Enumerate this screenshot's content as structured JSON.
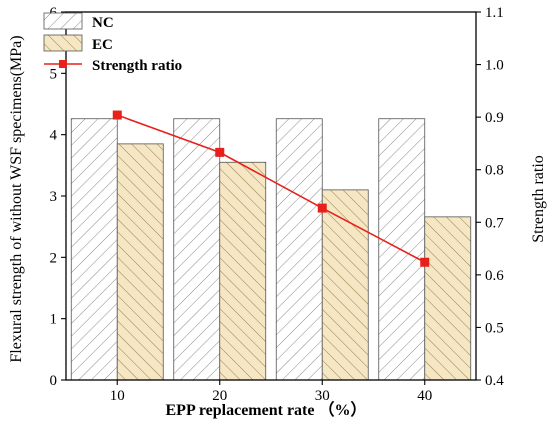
{
  "chart_data": {
    "type": "bar",
    "categories": [
      "10",
      "20",
      "30",
      "40"
    ],
    "xlabel": "EPP replacement rate （%）",
    "ylabel": "Flexural strength of without WSF specimens(MPa)",
    "y2label": "Strength ratio",
    "ylim": [
      0,
      6
    ],
    "y2lim": [
      0.4,
      1.1
    ],
    "yticks": [
      "0",
      "1",
      "2",
      "3",
      "4",
      "5",
      "6"
    ],
    "y2ticks": [
      "0.4",
      "0.5",
      "0.6",
      "0.7",
      "0.8",
      "0.9",
      "1.0",
      "1.1"
    ],
    "grid": false,
    "legend_position": "top-left",
    "series": [
      {
        "name": "NC",
        "kind": "bar",
        "axis": "left",
        "values": [
          4.26,
          4.26,
          4.26,
          4.26
        ],
        "fill": "#ffffff",
        "hatch": "#8a8a8a"
      },
      {
        "name": "EC",
        "kind": "bar",
        "axis": "left",
        "values": [
          3.85,
          3.55,
          3.1,
          2.66
        ],
        "fill": "#f5e6c4",
        "hatch": "#9a8050"
      },
      {
        "name": "Strength ratio",
        "kind": "line",
        "axis": "right",
        "values": [
          0.904,
          0.833,
          0.727,
          0.624
        ],
        "color": "#e8201b",
        "marker": "square"
      }
    ]
  }
}
